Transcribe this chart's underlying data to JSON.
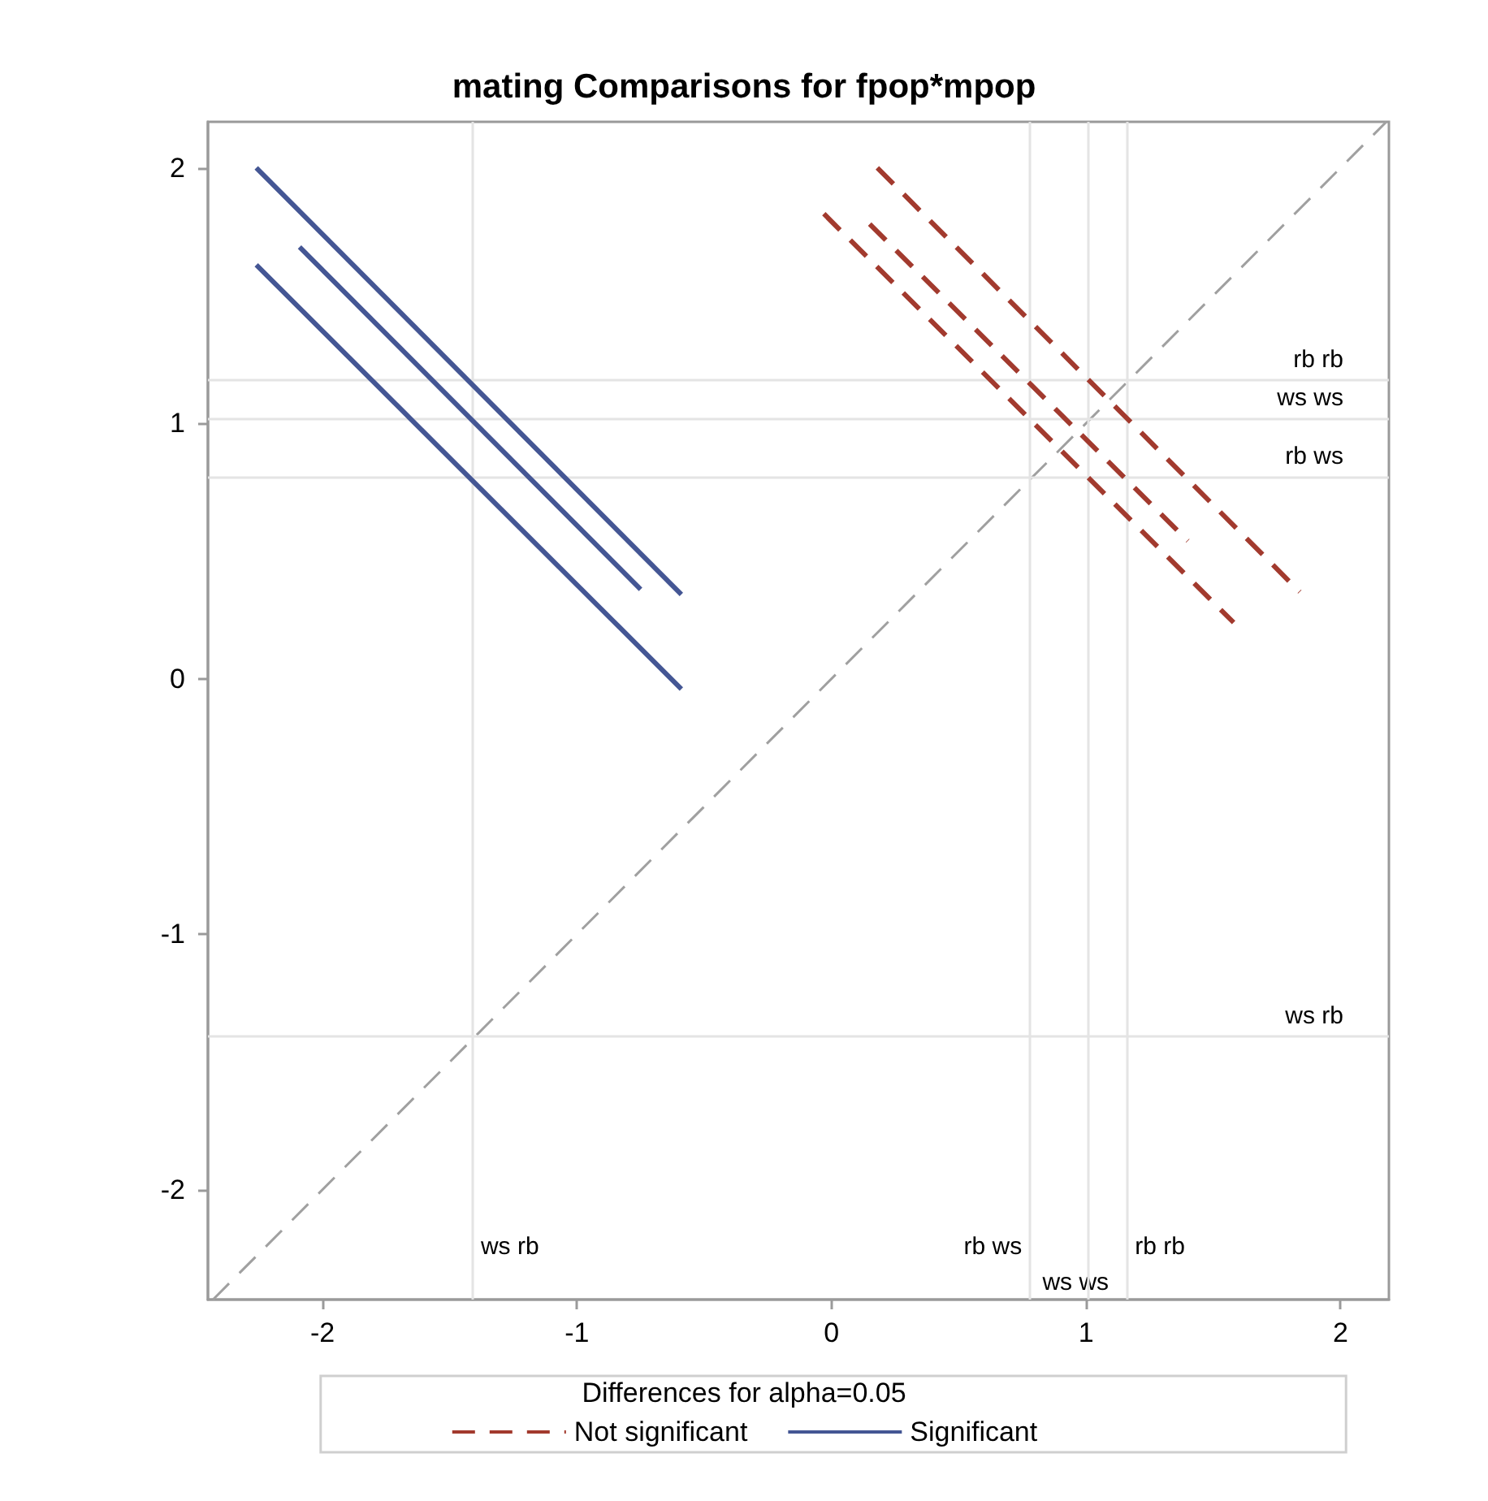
{
  "chart_data": {
    "type": "line",
    "title": "mating Comparisons for fpop*mpop",
    "legend_title": "Differences for alpha=0.05",
    "xlim": [
      -2.45,
      2.19
    ],
    "ylim": [
      -2.43,
      2.18
    ],
    "xticks": [
      -2,
      -1,
      0,
      1,
      2
    ],
    "yticks": [
      -2,
      -1,
      0,
      1,
      2
    ],
    "grid": false,
    "legend": "bottom",
    "marker": "none",
    "series": [
      {
        "name": "Not significant",
        "color": "#a23a2e",
        "line_style": "dashed",
        "x": [
          0.18,
          1.84
        ],
        "values": [
          2.0,
          0.34
        ]
      },
      {
        "color": "#a23a2e",
        "line_style": "dashed",
        "x": [
          -0.03,
          1.58
        ],
        "values": [
          1.82,
          0.22
        ]
      },
      {
        "color": "#a23a2e",
        "line_style": "dashed",
        "x": [
          0.15,
          1.4
        ],
        "values": [
          1.78,
          0.54
        ]
      },
      {
        "name": "Significant",
        "color": "#445694",
        "line_style": "solid",
        "x": [
          -2.26,
          -0.59
        ],
        "values": [
          2.0,
          0.33
        ]
      },
      {
        "color": "#445694",
        "line_style": "solid",
        "x": [
          -2.09,
          -0.75
        ],
        "values": [
          1.69,
          0.35
        ]
      },
      {
        "color": "#445694",
        "line_style": "solid",
        "x": [
          -2.26,
          -0.59
        ],
        "values": [
          1.62,
          -0.04
        ]
      },
      {
        "color": "#a0a0a0",
        "line_style": "dashed",
        "x": [
          -2.43,
          2.18
        ],
        "values": [
          -2.43,
          2.18
        ]
      }
    ],
    "ref_lines": [
      {
        "axis": "x",
        "value": -1.41,
        "label": "ws rb",
        "color": "#e4e4e4"
      },
      {
        "axis": "x",
        "value": 0.78,
        "label": "rb ws",
        "color": "#e4e4e4"
      },
      {
        "axis": "x",
        "value": 1.01,
        "label": "ws ws",
        "color": "#e4e4e4"
      },
      {
        "axis": "x",
        "value": 1.16,
        "label": "rb rb",
        "color": "#e4e4e4"
      },
      {
        "axis": "y",
        "value": 1.17,
        "label": "rb rb",
        "color": "#e4e4e4"
      },
      {
        "axis": "y",
        "value": 1.02,
        "label": "ws ws",
        "color": "#e4e4e4"
      },
      {
        "axis": "y",
        "value": 0.79,
        "label": "rb ws",
        "color": "#e4e4e4"
      },
      {
        "axis": "y",
        "value": -1.4,
        "label": "ws rb",
        "color": "#e4e4e4"
      }
    ]
  }
}
